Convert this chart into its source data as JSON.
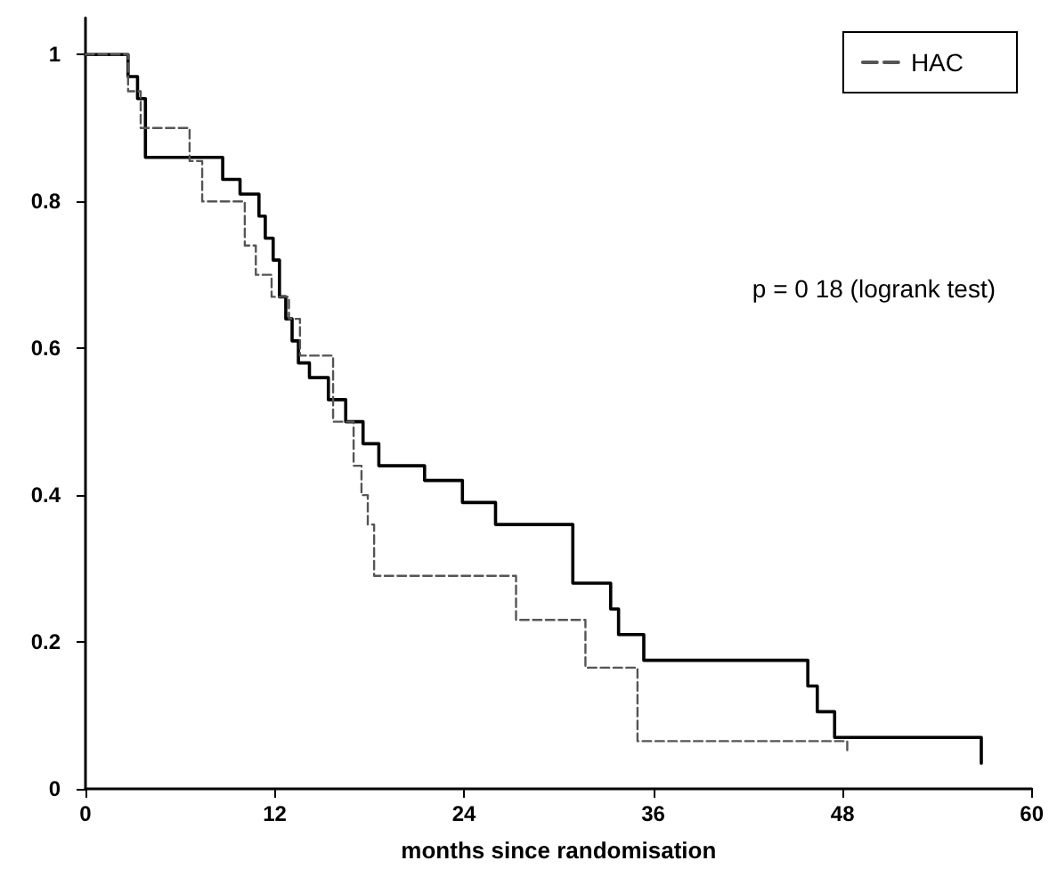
{
  "chart_data": {
    "type": "step",
    "xlabel": "months since randomisation",
    "annotations": [
      "p = 0 18 (logrank test)"
    ],
    "xlim": [
      0,
      60
    ],
    "xticks": [
      0,
      12,
      24,
      36,
      48,
      60
    ],
    "ylim": [
      0,
      1.05
    ],
    "yticks": [
      0,
      0.2,
      0.4,
      0.6,
      0.8,
      1
    ],
    "grid": false,
    "legend": "top right",
    "marker": "none",
    "series": [
      {
        "color": "#000000",
        "line_style": "solid",
        "x": [
          0,
          2.7,
          3.3,
          3.8,
          8.7,
          9.8,
          11.0,
          11.4,
          11.9,
          12.3,
          12.7,
          13.1,
          13.5,
          14.2,
          15.4,
          16.5,
          17.6,
          18.6,
          21.5,
          23.9,
          26.0,
          30.9,
          33.3,
          33.8,
          35.4,
          45.8,
          46.4,
          47.5,
          56.8
        ],
        "values": [
          1.0,
          0.97,
          0.94,
          0.86,
          0.83,
          0.81,
          0.78,
          0.75,
          0.72,
          0.67,
          0.64,
          0.61,
          0.58,
          0.56,
          0.53,
          0.5,
          0.47,
          0.44,
          0.42,
          0.39,
          0.36,
          0.28,
          0.245,
          0.21,
          0.175,
          0.14,
          0.105,
          0.07,
          0.035
        ]
      },
      {
        "name": "HAC",
        "color": "#555555",
        "line_style": "dashed",
        "x": [
          0,
          2.7,
          3.5,
          6.6,
          7.4,
          10.1,
          10.8,
          11.8,
          12.9,
          13.6,
          15.7,
          17.0,
          17.5,
          17.9,
          18.3,
          27.3,
          31.7,
          35.0,
          48.3
        ],
        "values": [
          1.0,
          0.95,
          0.9,
          0.855,
          0.8,
          0.74,
          0.7,
          0.67,
          0.64,
          0.59,
          0.5,
          0.44,
          0.4,
          0.36,
          0.29,
          0.23,
          0.165,
          0.065,
          0.05
        ]
      }
    ]
  }
}
